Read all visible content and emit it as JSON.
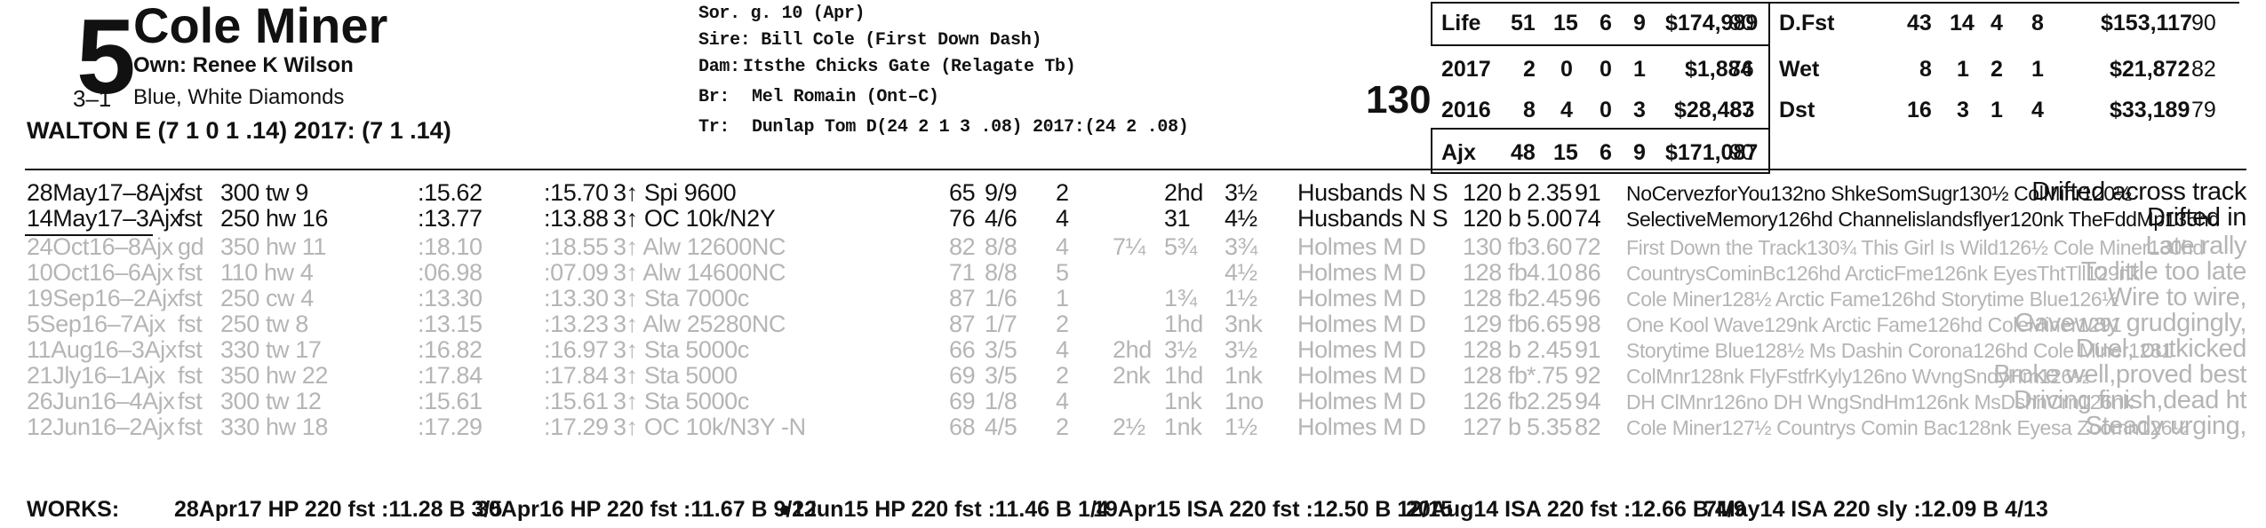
{
  "horse": {
    "post": "5",
    "odds": "3–1",
    "name": "Cole Miner",
    "owner": "Own: Renee K Wilson",
    "silks": "Blue, White Diamonds",
    "jockey": "WALTON E (7 1 0 1 .14) 2017: (7 1 .14)",
    "weight": "130"
  },
  "pedigree": {
    "sex_age": "Sor. g. 10 (Apr)",
    "sire": "Sire: Bill Cole (First Down Dash)",
    "dam_label": "Dam:",
    "dam": "Itsthe Chicks Gate (Relagate Tb)",
    "br_label": "Br:",
    "breeder": "Mel Romain (Ont–C)",
    "tr_label": "Tr:",
    "trainer": "Dunlap Tom D(24 2 1 3 .08)  2017:(24 2 .08)"
  },
  "stats_left": [
    {
      "label": "Life",
      "st": "51",
      "w": "15",
      "p": "6",
      "s": "9",
      "earn": "$174,989",
      "fig": "90"
    },
    {
      "label": "2017",
      "st": "2",
      "w": "0",
      "p": "0",
      "s": "1",
      "earn": "$1,884",
      "fig": "76"
    },
    {
      "label": "2016",
      "st": "8",
      "w": "4",
      "p": "0",
      "s": "3",
      "earn": "$28,483",
      "fig": "87"
    },
    {
      "label": "Ajx",
      "st": "48",
      "w": "15",
      "p": "6",
      "s": "9",
      "earn": "$171,087",
      "fig": "90"
    }
  ],
  "stats_right": [
    {
      "label": "D.Fst",
      "st": "43",
      "w": "14",
      "p": "4",
      "s": "8",
      "earn": "$153,117",
      "fig": "90"
    },
    {
      "label": "Wet",
      "st": "8",
      "w": "1",
      "p": "2",
      "s": "1",
      "earn": "$21,872",
      "fig": "82"
    },
    {
      "label": "Dst",
      "st": "16",
      "w": "3",
      "p": "1",
      "s": "4",
      "earn": "$33,189",
      "fig": "79"
    }
  ],
  "races": [
    {
      "date": "28May17–8Ajx",
      "cond": "fst",
      "dist": "300 tw 9",
      "t1": ":15.62",
      "t2": ":15.70",
      "cls": "3↑ Spi 9600",
      "sp": "65",
      "pp": "9/9",
      "st": "2",
      "c1": "",
      "c2": "2hd",
      "fin": "3½",
      "jky": "Husbands N S",
      "wt": "120 b",
      "odds": "2.35",
      "fig": "91",
      "comment": "NoCervezforYou132no ShkeSomSugr130½ ColMinr120½",
      "remark": "Drifted across track",
      "style": "cur"
    },
    {
      "date": "14May17–3Ajx",
      "cond": "fst",
      "dist": "250 hw 16",
      "t1": ":13.77",
      "t2": ":13.88",
      "cls": "3↑ OC 10k/N2Y",
      "sp": "76",
      "pp": "4/6",
      "st": "4",
      "c1": "",
      "c2": "31",
      "fin": "4½",
      "jky": "Husbands N S",
      "wt": "120 b",
      "odds": "5.00",
      "fig": "74",
      "comment": "SelectiveMemory126hd Channelislandsflyer120nk TheFddMp135hd",
      "remark": "Drifted in",
      "style": "cur"
    },
    {
      "date": "24Oct16–8Ajx",
      "cond": "gd",
      "dist": "350 hw 11",
      "t1": ":18.10",
      "t2": ":18.55",
      "cls": "3↑ Alw 12600NC",
      "sp": "82",
      "pp": "8/8",
      "st": "4",
      "c1": "7¼",
      "c2": "5¾",
      "fin": "3¾",
      "jky": "Holmes M D",
      "wt": "130 fb",
      "odds": "3.60",
      "fig": "72",
      "comment": "First Down the Track130¾ This Girl Is Wild126½ Cole Miner130hd",
      "remark": "Late rally",
      "style": "old"
    },
    {
      "date": "10Oct16–6Ajx",
      "cond": "fst",
      "dist": "110 hw 4",
      "t1": ":06.98",
      "t2": ":07.09",
      "cls": "3↑ Alw 14600NC",
      "sp": "71",
      "pp": "8/8",
      "st": "5",
      "c1": "",
      "c2": "",
      "fin": "4½",
      "jky": "Holmes M D",
      "wt": "128 fb",
      "odds": "4.10",
      "fig": "86",
      "comment": "CountrysCominBc126hd ArcticFme126nk EyesThtTll129nk",
      "remark": "To little too late",
      "style": "old"
    },
    {
      "date": "19Sep16–2Ajx",
      "cond": "fst",
      "dist": "250 cw 4",
      "t1": ":13.30",
      "t2": ":13.30",
      "cls": "3↑ Sta 7000c",
      "sp": "87",
      "pp": "1/6",
      "st": "1",
      "c1": "",
      "c2": "1¾",
      "fin": "1½",
      "jky": "Holmes M D",
      "wt": "128 fb",
      "odds": "2.45",
      "fig": "96",
      "comment": "Cole Miner128½ Arctic Fame126hd Storytime Blue126½",
      "remark": "Wire to wire,",
      "style": "old"
    },
    {
      "date": "5Sep16–7Ajx",
      "cond": "fst",
      "dist": "250 tw 8",
      "t1": ":13.15",
      "t2": ":13.23",
      "cls": "3↑ Alw 25280NC",
      "sp": "87",
      "pp": "1/7",
      "st": "2",
      "c1": "",
      "c2": "1hd",
      "fin": "3nk",
      "jky": "Holmes M D",
      "wt": "129 fb",
      "odds": "6.65",
      "fig": "98",
      "comment": "One Kool Wave129nk Arctic Fame126hd ColeMiner1291",
      "remark": "Gaveway grudgingly,",
      "style": "old"
    },
    {
      "date": "11Aug16–3Ajx",
      "cond": "fst",
      "dist": "330 tw 17",
      "t1": ":16.82",
      "t2": ":16.97",
      "cls": "3↑ Sta 5000c",
      "sp": "66",
      "pp": "3/5",
      "st": "4",
      "c1": "2hd",
      "c2": "3½",
      "fin": "3½",
      "jky": "Holmes M D",
      "wt": "128 b",
      "odds": "2.45",
      "fig": "91",
      "comment": "Storytime Blue128½ Ms Dashin Corona126hd Cole Miner1281",
      "remark": "Duel, outkicked",
      "style": "old"
    },
    {
      "date": "21Jly16–1Ajx",
      "cond": "fst",
      "dist": "350 hw 22",
      "t1": ":17.84",
      "t2": ":17.84",
      "cls": "3↑ Sta 5000",
      "sp": "69",
      "pp": "3/5",
      "st": "2",
      "c1": "2nk",
      "c2": "1hd",
      "fin": "1nk",
      "jky": "Holmes M D",
      "wt": "128 fb",
      "odds": "*.75",
      "fig": "92",
      "comment": "ColMnr128nk FlyFstfrKyly126no WvngSndyHm126½",
      "remark": "Broke well,proved best",
      "style": "old"
    },
    {
      "date": "26Jun16–4Ajx",
      "cond": "fst",
      "dist": "300 tw 12",
      "t1": ":15.61",
      "t2": ":15.61",
      "cls": "3↑ Sta 5000c",
      "sp": "69",
      "pp": "1/8",
      "st": "4",
      "c1": "",
      "c2": "1nk",
      "fin": "1no",
      "jky": "Holmes M D",
      "wt": "126 fb",
      "odds": "2.25",
      "fig": "94",
      "comment": "DH ClMnr126no DH WngSndHm126nk MsDshnCrn126nk",
      "remark": "Driving finish,dead ht",
      "style": "old"
    },
    {
      "date": "12Jun16–2Ajx",
      "cond": "fst",
      "dist": "330 hw 18",
      "t1": ":17.29",
      "t2": ":17.29",
      "cls": "3↑ OC 10k/N3Y -N",
      "sp": "68",
      "pp": "4/5",
      "st": "2",
      "c1": "2½",
      "c2": "1nk",
      "fin": "1½",
      "jky": "Holmes M D",
      "wt": "127 b",
      "odds": "5.35",
      "fig": "82",
      "comment": "Cole Miner127½ Countrys Comin Bac128nk Eyesa Zoomn126½",
      "remark": "Steady urging,",
      "style": "old"
    }
  ],
  "works": {
    "label": "WORKS:",
    "items": [
      "28Apr17 HP 220 fst :11.28 B 3/5",
      "30Apr16 HP 220 fst :11.67 B 9/12",
      "●2Jun15 HP 220 fst :11.46 B 1/4",
      "19Apr15 ISA 220 fst :12.50 B 12/15",
      "20Aug14 ISA 220 fst :12.66 B 4/9",
      "7May14 ISA 220 sly :12.09 B 4/13"
    ]
  }
}
